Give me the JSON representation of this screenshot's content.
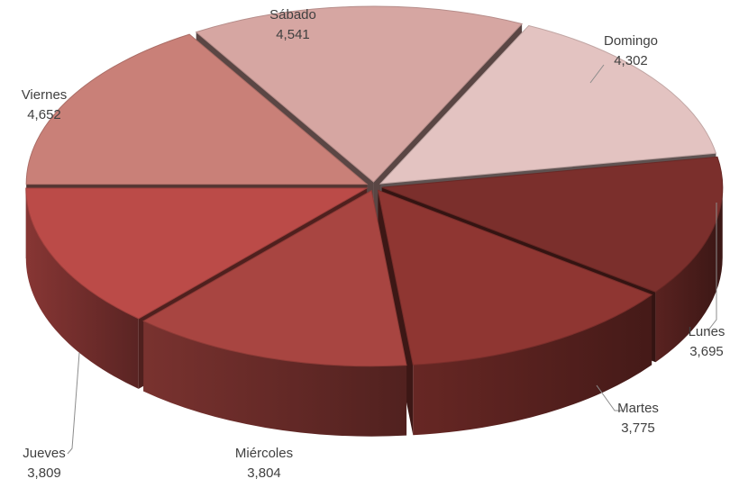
{
  "chart_data": {
    "type": "pie",
    "title": "",
    "categories": [
      "Lunes",
      "Martes",
      "Miércoles",
      "Jueves",
      "Viernes",
      "Sábado",
      "Domingo"
    ],
    "values": [
      3695,
      3775,
      3804,
      3809,
      4652,
      4541,
      4302
    ],
    "value_labels": [
      "3,695",
      "3,775",
      "3,804",
      "3,809",
      "4,652",
      "4,541",
      "4,302"
    ],
    "colors": [
      "#7b2f2c",
      "#8f3632",
      "#a84541",
      "#bb4b48",
      "#c98078",
      "#d6a6a2",
      "#e3c3c1"
    ],
    "legend": "none",
    "style": "3d-exploded"
  }
}
